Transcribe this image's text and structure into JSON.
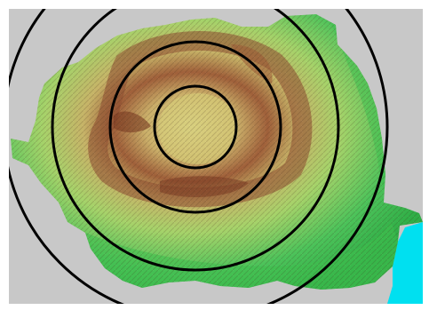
{
  "colors": {
    "background_gray": "#c8c8c8",
    "lowland_green": "#3fbf4f",
    "light_green": "#8fd46a",
    "plateau_yellow": "#d9d27a",
    "hills_tan": "#c9a45c",
    "mountain_brown": "#8c4a2f",
    "sea_cyan": "#00e0f0",
    "ring_black": "#000000"
  },
  "map": {
    "subject": "relief-map-with-concentric-rings",
    "ring_count": 4
  }
}
